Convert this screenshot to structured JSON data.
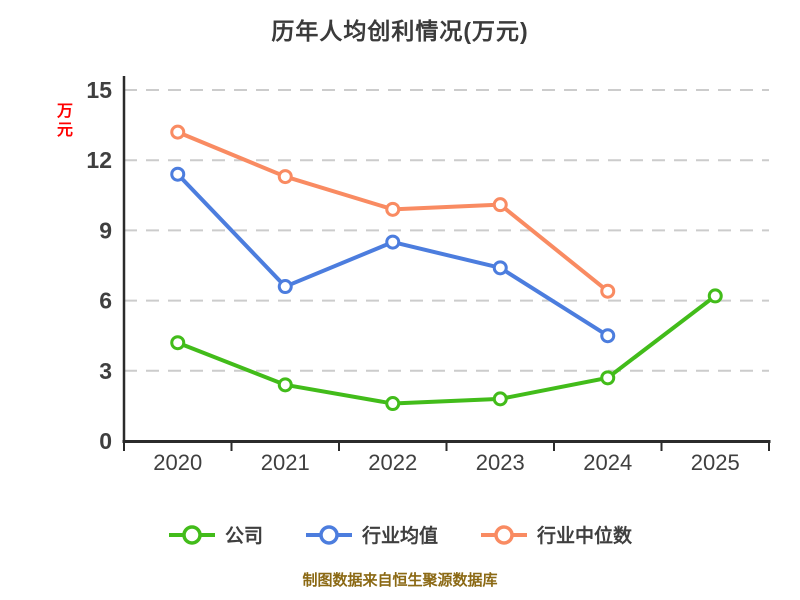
{
  "title": "历年人均创利情况(万元)",
  "y_axis_title": "万元",
  "footer_note": "制图数据来自恒生聚源数据库",
  "colors": {
    "company_green": "#42bc1a",
    "industry_avg_blue": "#4c7dde",
    "industry_median_orange": "#f98b62",
    "grid_gray": "#cccccc",
    "axis_dark": "#2b2b2b",
    "text_dark": "#3f3f3f",
    "y_title_red": "#ff0000",
    "footer_gold": "#8b6914"
  },
  "chart_data": {
    "type": "line",
    "title": "历年人均创利情况(万元)",
    "ylabel": "万元",
    "xlabel": "",
    "categories": [
      "2020",
      "2021",
      "2022",
      "2023",
      "2024",
      "2025"
    ],
    "yticks": [
      0,
      3,
      6,
      9,
      12,
      15
    ],
    "ylim": [
      0,
      15
    ],
    "grid": "dashed-horizontal",
    "legend_position": "bottom",
    "marker": "open-circle",
    "series": [
      {
        "name": "公司",
        "color": "#42bc1a",
        "values": [
          4.2,
          2.4,
          1.6,
          1.8,
          2.7,
          6.2
        ]
      },
      {
        "name": "行业均值",
        "color": "#4c7dde",
        "values": [
          11.4,
          6.6,
          8.5,
          7.4,
          4.5,
          null
        ]
      },
      {
        "name": "行业中位数",
        "color": "#f98b62",
        "values": [
          13.2,
          11.3,
          9.9,
          10.1,
          6.4,
          null
        ]
      }
    ]
  }
}
